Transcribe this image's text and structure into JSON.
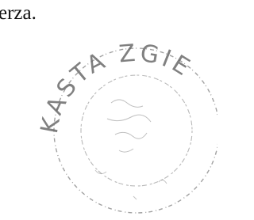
{
  "text": "erza.",
  "stamp": {
    "arc_text": "KASTA ZGIE"
  }
}
